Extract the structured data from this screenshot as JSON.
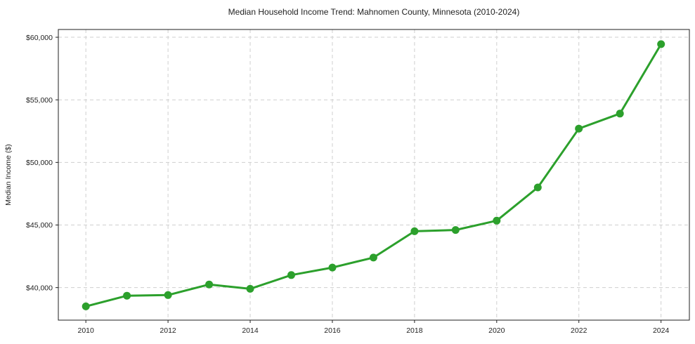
{
  "chart_data": {
    "type": "line",
    "title": "Median Household Income Trend: Mahnomen County, Minnesota (2010-2024)",
    "xlabel": "",
    "ylabel": "Median Income ($)",
    "x": [
      2010,
      2011,
      2012,
      2013,
      2014,
      2015,
      2016,
      2017,
      2018,
      2019,
      2020,
      2021,
      2022,
      2023,
      2024
    ],
    "values": [
      38500,
      39350,
      39400,
      40250,
      39900,
      41000,
      41600,
      42400,
      44500,
      44600,
      45350,
      48000,
      52700,
      53900,
      59450
    ],
    "series_name": "Median Household Income",
    "xlim": [
      2009.33,
      2024.69
    ],
    "ylim": [
      37400,
      60620
    ],
    "xticks": [
      2010,
      2012,
      2014,
      2016,
      2018,
      2020,
      2022,
      2024
    ],
    "xtick_labels": [
      "2010",
      "2012",
      "2014",
      "2016",
      "2018",
      "2020",
      "2022",
      "2024"
    ],
    "yticks": [
      40000,
      45000,
      50000,
      55000,
      60000
    ],
    "ytick_labels": [
      "$40,000",
      "$45,000",
      "$50,000",
      "$55,000",
      "$60,000"
    ],
    "grid": true,
    "grid_style": "dashed",
    "legend": false,
    "colors": {
      "line": "#2ca02c",
      "marker": "#2ca02c",
      "grid": "#cfcfcf",
      "spine": "#1f1f1f",
      "text": "#1f1f1f",
      "background": "#ffffff"
    },
    "line_width": 3,
    "marker": "circle",
    "marker_radius": 5.5
  }
}
